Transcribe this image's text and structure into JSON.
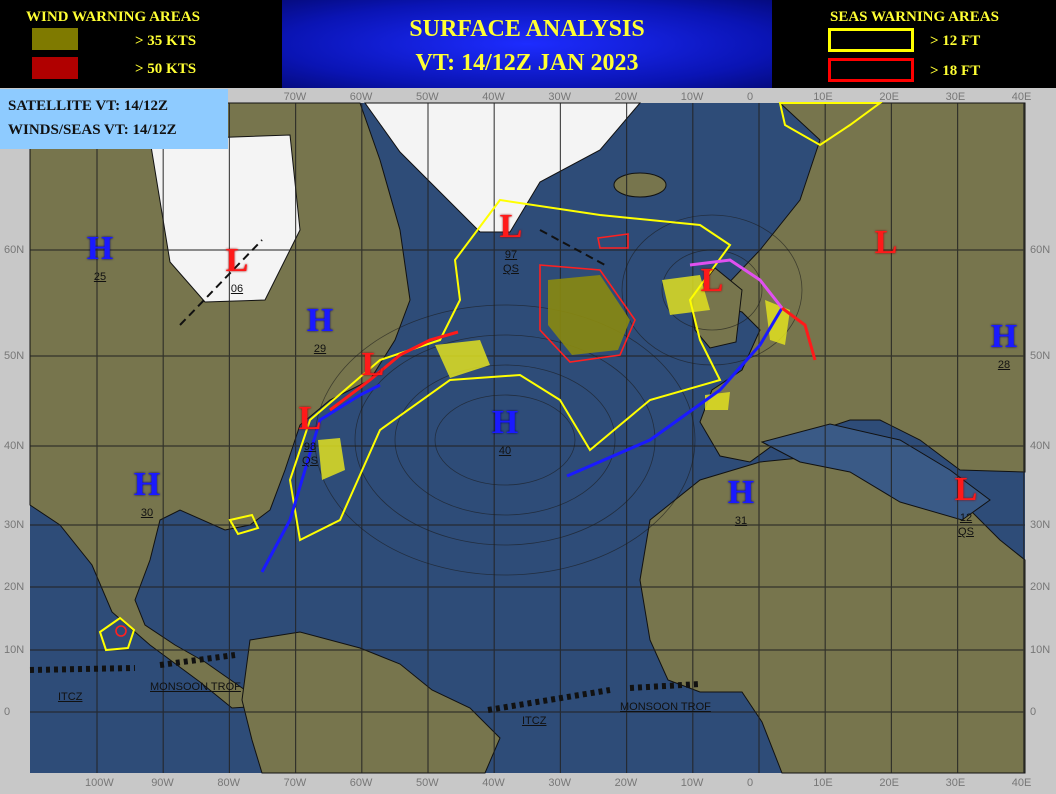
{
  "header": {
    "wind_title": "WIND WARNING AREAS",
    "wind_legend": [
      {
        "label": "> 35 KTS",
        "color": "#7f7a00"
      },
      {
        "label": "> 50 KTS",
        "color": "#b00000"
      }
    ],
    "title_line1": "SURFACE ANALYSIS",
    "title_line2": "VT: 14/12Z JAN 2023",
    "seas_title": "SEAS WARNING AREAS",
    "seas_legend": [
      {
        "label": "> 12 FT",
        "color": "#ffff00"
      },
      {
        "label": "> 18 FT",
        "color": "#ff0000"
      }
    ]
  },
  "valid_box": {
    "satellite": "SATELLITE VT: 14/12Z",
    "winds_seas": "WINDS/SEAS VT: 14/12Z"
  },
  "lon_ticks": [
    "100W",
    "90W",
    "80W",
    "70W",
    "60W",
    "50W",
    "40W",
    "30W",
    "20W",
    "10W",
    "0",
    "10E",
    "20E",
    "30E",
    "40E"
  ],
  "lat_ticks": [
    "60N",
    "50N",
    "40N",
    "30N",
    "20N",
    "10N",
    "0"
  ],
  "pressure_centers": [
    {
      "type": "H",
      "value": "25"
    },
    {
      "type": "L",
      "value": "06"
    },
    {
      "type": "H",
      "value": "29"
    },
    {
      "type": "L",
      "value": "97",
      "note": "QS"
    },
    {
      "type": "L",
      "value": ""
    },
    {
      "type": "L",
      "value": "98",
      "note": "QS"
    },
    {
      "type": "H",
      "value": "40"
    },
    {
      "type": "H",
      "value": "30"
    },
    {
      "type": "L",
      "value": ""
    },
    {
      "type": "L",
      "value": ""
    },
    {
      "type": "H",
      "value": "28"
    },
    {
      "type": "H",
      "value": "31"
    },
    {
      "type": "L",
      "value": "12",
      "note": "QS"
    }
  ],
  "features": {
    "itcz_west": "ITCZ",
    "monsoon_west": "MONSOON TROF",
    "itcz_east": "ITCZ",
    "monsoon_east": "MONSOON TROF"
  },
  "colors": {
    "ocean": "#2e4c78",
    "land": "#77754d",
    "ice": "#f4f4f4",
    "cold_front": "#1a1aff",
    "warm_front": "#ff1a1a",
    "occluded_front": "#e050f0",
    "seas_12ft": "#ffff00",
    "seas_18ft": "#ff2020",
    "wind_35kt": "#7f7a00"
  }
}
